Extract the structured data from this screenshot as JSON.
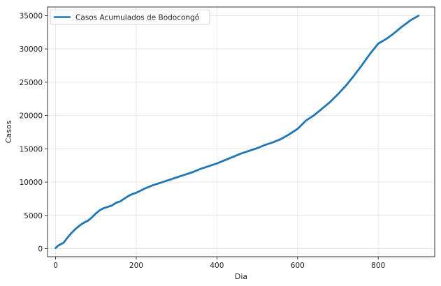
{
  "chart_data": {
    "type": "line",
    "title": "",
    "xlabel": "Dia",
    "ylabel": "Casos",
    "xlim": [
      -20,
      940
    ],
    "ylim": [
      -1200,
      36300
    ],
    "grid": true,
    "legend_placement": "top-left",
    "xticks": [
      0,
      200,
      400,
      600,
      800
    ],
    "yticks": [
      0,
      5000,
      10000,
      15000,
      20000,
      25000,
      30000,
      35000
    ],
    "series": [
      {
        "name": "Casos Acumulados de Bodocongó",
        "color": "#1f77b4",
        "x": [
          0,
          5,
          10,
          20,
          30,
          40,
          50,
          60,
          70,
          80,
          90,
          100,
          110,
          120,
          130,
          140,
          150,
          160,
          170,
          180,
          190,
          200,
          220,
          240,
          260,
          280,
          300,
          320,
          340,
          360,
          380,
          400,
          420,
          440,
          460,
          480,
          500,
          520,
          540,
          560,
          580,
          600,
          620,
          640,
          660,
          680,
          700,
          720,
          740,
          760,
          780,
          800,
          820,
          840,
          860,
          880,
          900
        ],
        "y": [
          100,
          400,
          600,
          900,
          1700,
          2400,
          3000,
          3500,
          3900,
          4200,
          4700,
          5300,
          5800,
          6100,
          6300,
          6500,
          6900,
          7100,
          7500,
          7900,
          8200,
          8400,
          9000,
          9500,
          9900,
          10300,
          10700,
          11100,
          11500,
          12000,
          12400,
          12800,
          13300,
          13800,
          14300,
          14700,
          15100,
          15600,
          16000,
          16500,
          17200,
          18000,
          19200,
          20000,
          21000,
          22000,
          23200,
          24500,
          26000,
          27600,
          29300,
          30800,
          31500,
          32400,
          33400,
          34300,
          35000
        ]
      }
    ]
  }
}
